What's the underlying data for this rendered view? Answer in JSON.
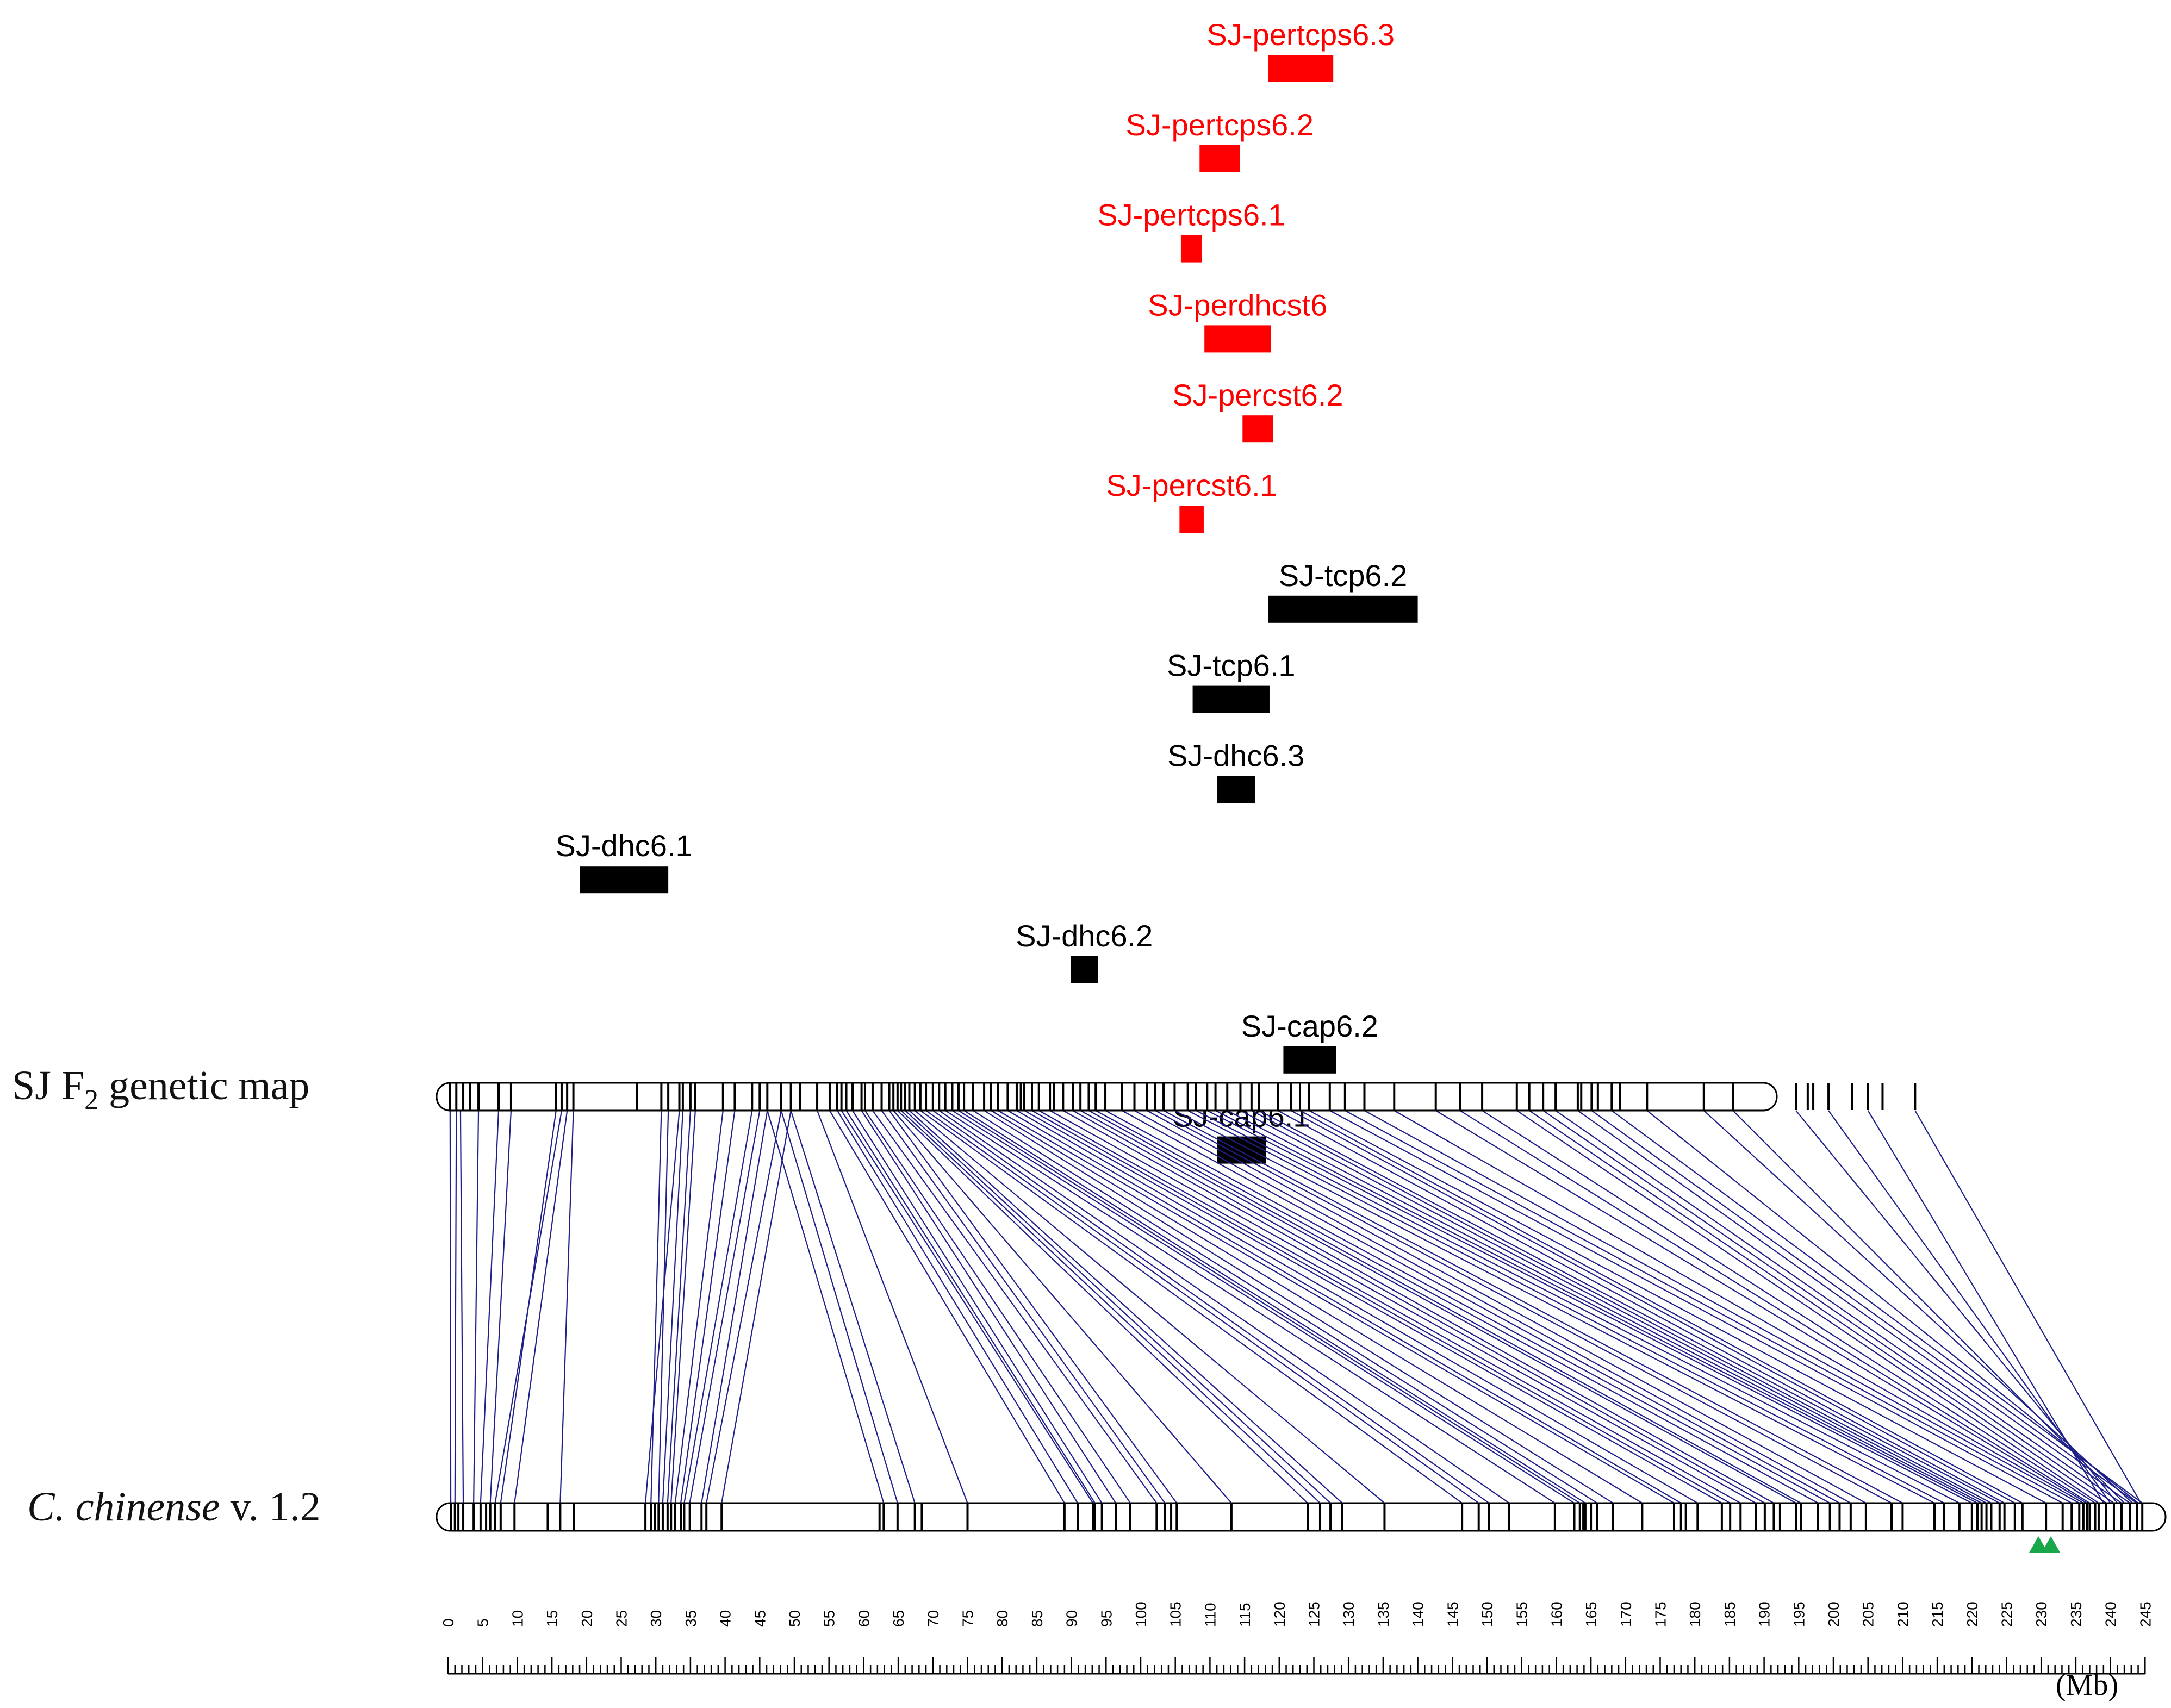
{
  "qtls": [
    {
      "label": "SJ-pertcps6.3",
      "start": 118.4,
      "end": 127.8,
      "color": "#ff0000"
    },
    {
      "label": "SJ-pertcps6.2",
      "start": 108.5,
      "end": 114.3,
      "color": "#ff0000"
    },
    {
      "label": "SJ-pertcps6.1",
      "start": 105.8,
      "end": 108.8,
      "color": "#ff0000"
    },
    {
      "label": "SJ-perdhcst6",
      "start": 109.2,
      "end": 118.8,
      "color": "#ff0000"
    },
    {
      "label": "SJ-percst6.2",
      "start": 114.7,
      "end": 119.1,
      "color": "#ff0000"
    },
    {
      "label": "SJ-percst6.1",
      "start": 105.6,
      "end": 109.1,
      "color": "#ff0000"
    },
    {
      "label": "SJ-tcp6.2",
      "start": 118.4,
      "end": 140.0,
      "color": "#000000"
    },
    {
      "label": "SJ-tcp6.1",
      "start": 107.5,
      "end": 118.6,
      "color": "#000000"
    },
    {
      "label": "SJ-dhc6.3",
      "start": 111.0,
      "end": 116.5,
      "color": "#000000"
    },
    {
      "label": "SJ-dhc6.1",
      "start": 19.0,
      "end": 31.8,
      "color": "#000000"
    },
    {
      "label": "SJ-dhc6.2",
      "start": 89.9,
      "end": 93.8,
      "color": "#000000"
    },
    {
      "label": "SJ-cap6.2",
      "start": 120.6,
      "end": 128.2,
      "color": "#000000"
    },
    {
      "label": "SJ-cap6.1",
      "start": 111.0,
      "end": 118.1,
      "color": "#000000"
    }
  ],
  "tracks": {
    "genetic_map_label_pre": "SJ F",
    "genetic_map_label_sub": "2",
    "genetic_map_label_post": " genetic map",
    "physical_label_italic": "C. chinense",
    "physical_label_rest": " v. 1.2"
  },
  "axis": {
    "min": 0,
    "max": 245,
    "major_step": 5,
    "minor_step": 1,
    "unit": "(Mb)"
  },
  "colors": {
    "link": "#1f1f8a",
    "marker_triangle": "#1aa64a"
  },
  "marker_triangles_mb": [
    229.6,
    231.4
  ],
  "genetic_map_markers": [
    0.3,
    1.2,
    2.2,
    3.2,
    4.4,
    7.3,
    9.1,
    15.6,
    16.4,
    17.2,
    18.1,
    27.3,
    30.8,
    31.8,
    33.4,
    33.9,
    35.0,
    35.7,
    39.7,
    41.4,
    43.9,
    45.0,
    46.1,
    48.1,
    49.5,
    50.8,
    53.3,
    55.1,
    56.2,
    56.8,
    57.5,
    58.4,
    59.7,
    60.2,
    61.3,
    62.6,
    63.7,
    64.3,
    64.9,
    65.4,
    66.0,
    66.6,
    67.4,
    68.2,
    69.0,
    70.0,
    70.9,
    71.8,
    72.8,
    73.7,
    74.5,
    75.8,
    77.4,
    78.4,
    79.4,
    80.8,
    82.1,
    82.7,
    83.2,
    84.3,
    85.3,
    86.9,
    87.5,
    88.8,
    90.2,
    91.3,
    92.5,
    93.5,
    94.9,
    97.3,
    99.1,
    100.9,
    102.1,
    103.3,
    104.9,
    106.8,
    108.0,
    109.6,
    110.8,
    112.5,
    114.4,
    116.0,
    117.1,
    119.8,
    121.7,
    123.0,
    124.3,
    127.3,
    129.5,
    132.3,
    136.6,
    142.6,
    146.1,
    149.3,
    154.3,
    156.1,
    158.1,
    159.9,
    163.1,
    163.6,
    165.1,
    166.0,
    168.0,
    169.2,
    173.1,
    181.3,
    185.5,
    194.6,
    196.3,
    197.1,
    199.3,
    202.7,
    205.0,
    207.1,
    211.8
  ],
  "physical_markers": [
    0.4,
    1.0,
    1.5,
    2.2,
    3.7,
    4.7,
    5.5,
    6.1,
    6.8,
    7.6,
    9.6,
    14.4,
    16.2,
    18.2,
    28.5,
    29.3,
    29.9,
    30.4,
    31.0,
    31.7,
    32.2,
    32.8,
    33.6,
    34.1,
    34.9,
    36.6,
    37.3,
    39.5,
    62.3,
    62.9,
    64.9,
    67.4,
    68.4,
    75.0,
    89.0,
    90.9,
    93.1,
    93.4,
    94.4,
    96.4,
    98.5,
    102.3,
    103.5,
    104.4,
    105.2,
    113.1,
    124.1,
    125.9,
    127.4,
    129.1,
    135.2,
    146.4,
    148.8,
    150.3,
    153.2,
    159.8,
    162.6,
    163.4,
    163.9,
    164.2,
    165.0,
    165.9,
    168.2,
    172.4,
    177.0,
    178.0,
    178.7,
    180.4,
    183.9,
    185.1,
    186.6,
    188.8,
    190.1,
    191.4,
    192.3,
    194.6,
    195.3,
    197.8,
    199.5,
    200.9,
    202.5,
    204.7,
    208.4,
    210.0,
    214.6,
    216.0,
    218.2,
    220.0,
    220.8,
    221.4,
    222.1,
    222.8,
    224.0,
    224.7,
    226.2,
    227.3,
    230.7,
    233.1,
    234.4,
    235.5,
    236.1,
    236.6,
    237.0,
    237.8,
    238.3,
    239.4,
    240.5,
    241.6,
    242.8,
    243.8,
    244.6
  ],
  "links": [
    [
      0.3,
      0.4
    ],
    [
      1.2,
      1.0
    ],
    [
      1.8,
      2.2
    ],
    [
      4.4,
      3.7
    ],
    [
      7.3,
      4.7
    ],
    [
      9.1,
      6.1
    ],
    [
      15.6,
      7.6
    ],
    [
      16.4,
      6.8
    ],
    [
      17.2,
      9.6
    ],
    [
      18.1,
      16.2
    ],
    [
      30.8,
      29.3
    ],
    [
      31.8,
      30.4
    ],
    [
      33.4,
      28.5
    ],
    [
      33.9,
      31.0
    ],
    [
      35.0,
      31.7
    ],
    [
      35.7,
      32.2
    ],
    [
      39.7,
      32.8
    ],
    [
      41.4,
      33.6
    ],
    [
      43.9,
      34.1
    ],
    [
      45.0,
      34.9
    ],
    [
      46.1,
      36.6
    ],
    [
      48.1,
      37.3
    ],
    [
      49.5,
      39.5
    ],
    [
      46.1,
      62.9
    ],
    [
      48.1,
      64.9
    ],
    [
      49.5,
      67.4
    ],
    [
      53.3,
      75.0
    ],
    [
      55.1,
      89.0
    ],
    [
      56.2,
      90.9
    ],
    [
      56.8,
      93.1
    ],
    [
      57.5,
      93.4
    ],
    [
      58.4,
      94.4
    ],
    [
      59.7,
      96.4
    ],
    [
      60.2,
      98.5
    ],
    [
      61.3,
      102.3
    ],
    [
      62.6,
      103.5
    ],
    [
      63.7,
      105.2
    ],
    [
      64.3,
      113.1
    ],
    [
      64.9,
      124.1
    ],
    [
      65.4,
      125.9
    ],
    [
      66.0,
      127.4
    ],
    [
      66.6,
      129.1
    ],
    [
      67.4,
      135.2
    ],
    [
      68.2,
      146.4
    ],
    [
      69.0,
      148.8
    ],
    [
      70.0,
      150.3
    ],
    [
      70.9,
      153.2
    ],
    [
      71.8,
      159.8
    ],
    [
      72.8,
      162.6
    ],
    [
      73.7,
      163.4
    ],
    [
      74.5,
      164.2
    ],
    [
      75.8,
      165.9
    ],
    [
      77.4,
      168.2
    ],
    [
      78.4,
      172.4
    ],
    [
      79.4,
      177.0
    ],
    [
      80.8,
      178.0
    ],
    [
      82.1,
      180.4
    ],
    [
      83.2,
      183.9
    ],
    [
      84.3,
      185.1
    ],
    [
      85.3,
      186.6
    ],
    [
      86.9,
      188.8
    ],
    [
      88.8,
      190.1
    ],
    [
      90.2,
      191.4
    ],
    [
      91.3,
      194.6
    ],
    [
      92.5,
      195.3
    ],
    [
      93.5,
      197.8
    ],
    [
      94.9,
      199.5
    ],
    [
      97.3,
      200.9
    ],
    [
      99.1,
      202.5
    ],
    [
      100.9,
      204.7
    ],
    [
      102.1,
      208.4
    ],
    [
      103.3,
      210.0
    ],
    [
      104.9,
      214.6
    ],
    [
      106.8,
      216.0
    ],
    [
      108.0,
      218.2
    ],
    [
      109.6,
      220.0
    ],
    [
      110.8,
      220.8
    ],
    [
      112.5,
      221.4
    ],
    [
      114.4,
      222.1
    ],
    [
      116.0,
      222.8
    ],
    [
      117.1,
      224.0
    ],
    [
      119.8,
      224.7
    ],
    [
      121.7,
      226.2
    ],
    [
      123.0,
      227.3
    ],
    [
      124.3,
      230.7
    ],
    [
      127.3,
      233.1
    ],
    [
      129.5,
      234.4
    ],
    [
      132.3,
      235.5
    ],
    [
      136.6,
      236.1
    ],
    [
      142.6,
      236.6
    ],
    [
      146.1,
      237.0
    ],
    [
      149.3,
      237.8
    ],
    [
      154.3,
      238.3
    ],
    [
      156.1,
      239.4
    ],
    [
      158.1,
      240.5
    ],
    [
      159.9,
      241.6
    ],
    [
      163.1,
      242.8
    ],
    [
      165.1,
      243.8
    ],
    [
      168.0,
      244.6
    ],
    [
      173.1,
      244.0
    ],
    [
      181.3,
      243.2
    ],
    [
      185.5,
      242.0
    ],
    [
      194.6,
      241.0
    ],
    [
      199.3,
      240.0
    ],
    [
      205.0,
      239.0
    ],
    [
      211.8,
      244.4
    ]
  ]
}
